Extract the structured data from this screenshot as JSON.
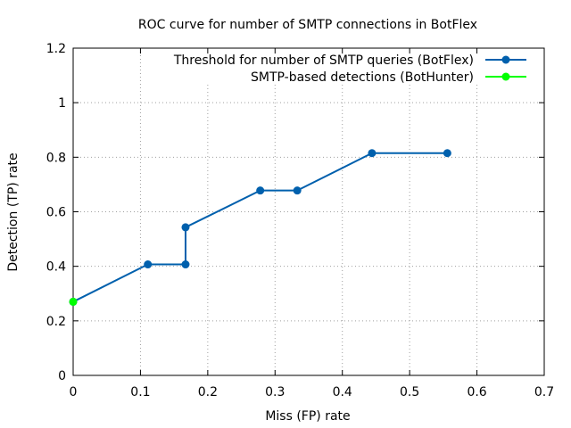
{
  "chart_data": {
    "type": "line",
    "title": "ROC curve for number of SMTP connections in BotFlex",
    "xlabel": "Miss (FP) rate",
    "ylabel": "Detection (TP) rate",
    "xlim": [
      0,
      0.7
    ],
    "ylim": [
      0,
      1.2
    ],
    "xticks": [
      0,
      0.1,
      0.2,
      0.3,
      0.4,
      0.5,
      0.6,
      0.7
    ],
    "yticks": [
      0,
      0.2,
      0.4,
      0.6,
      0.8,
      1,
      1.2
    ],
    "xtick_labels": [
      "0",
      "0.1",
      "0.2",
      "0.3",
      "0.4",
      "0.5",
      "0.6",
      "0.7"
    ],
    "ytick_labels": [
      "0",
      "0.2",
      "0.4",
      "0.6",
      "0.8",
      "1",
      "1.2"
    ],
    "grid": true,
    "legend_position": "top-right",
    "series": [
      {
        "name": "Threshold for number of SMTP queries (BotFlex)",
        "color": "#0060ad",
        "marker": "circle",
        "x": [
          0,
          0.111,
          0.167,
          0.167,
          0.278,
          0.333,
          0.444,
          0.556
        ],
        "y": [
          0.27,
          0.407,
          0.407,
          0.543,
          0.678,
          0.678,
          0.815,
          0.815
        ]
      },
      {
        "name": "SMTP-based detections (BotHunter)",
        "color": "#00ff00",
        "marker": "circle",
        "x": [
          0
        ],
        "y": [
          0.27
        ]
      }
    ]
  }
}
